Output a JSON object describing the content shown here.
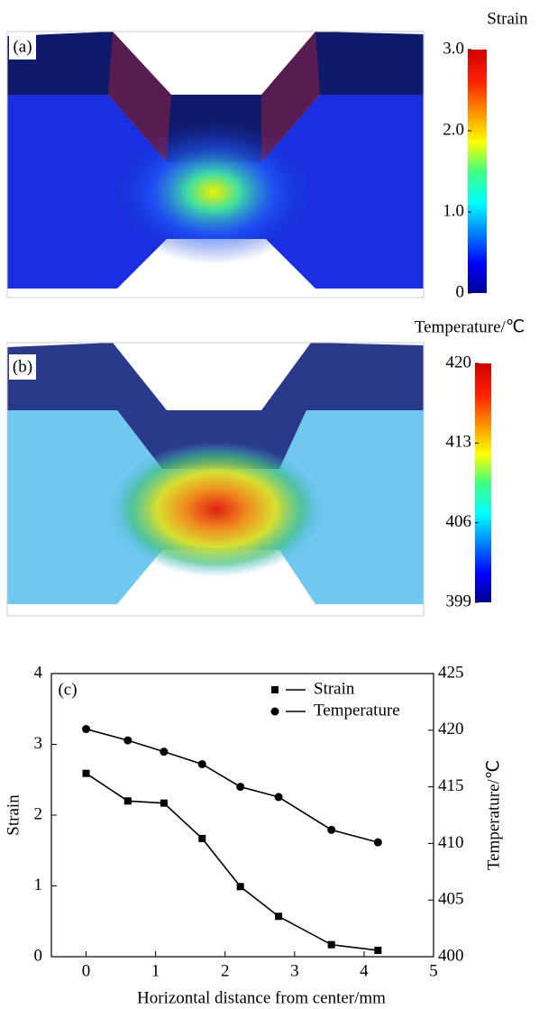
{
  "chart_data": [
    {
      "type": "colormap",
      "label": "(a)",
      "colorbar_title": "Strain",
      "clim": [
        0,
        3
      ],
      "colorbar_ticks": [
        0,
        {
          "value": 1,
          "label": "1.0"
        },
        {
          "value": 2,
          "label": "2.0"
        },
        {
          "value": 3,
          "label": "3.0"
        }
      ]
    },
    {
      "type": "colormap",
      "label": "(b)",
      "colorbar_title": "Temperature/℃",
      "clim": [
        399,
        420
      ],
      "colorbar_ticks": [
        399,
        406,
        413,
        420
      ]
    },
    {
      "type": "line",
      "label": "(c)",
      "x_label": "Horizontal distance from center/mm",
      "y_label": "Strain",
      "y2_label": "Temperature/℃",
      "x": [
        0,
        0.6,
        1.12,
        1.67,
        2.22,
        2.77,
        3.53,
        4.2
      ],
      "series": [
        {
          "name": "Strain",
          "color": "#000000",
          "marker": "square",
          "values": [
            2.59,
            2.2,
            2.17,
            1.67,
            0.99,
            0.57,
            0.17,
            0.09
          ]
        },
        {
          "name": "Temperature",
          "color": "#000000",
          "marker": "circle",
          "axis": "y2",
          "values": [
            420.1,
            419.1,
            418.1,
            417.0,
            415.0,
            414.1,
            411.2,
            410.1
          ]
        }
      ],
      "xlim": [
        -0.5,
        5
      ],
      "xticks": [
        0,
        1,
        2,
        3,
        4,
        5
      ],
      "ylim": [
        0,
        4
      ],
      "yticks": [
        0,
        1,
        2,
        3,
        4
      ],
      "y2lim": [
        400,
        425
      ],
      "y2ticks": [
        400,
        405,
        410,
        415,
        420,
        425
      ],
      "legend": "upper right"
    }
  ]
}
